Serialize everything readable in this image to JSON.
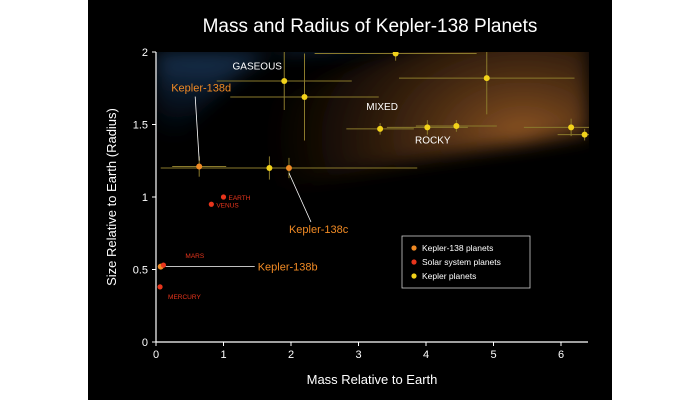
{
  "chart_data": {
    "type": "scatter",
    "title": "Mass and Radius of Kepler-138 Planets",
    "xlabel": "Mass Relative to Earth",
    "ylabel": "Size Relative to Earth (Radius)",
    "xlim": [
      0,
      6.4
    ],
    "ylim": [
      0,
      2
    ],
    "x_ticks": [
      "0",
      "1",
      "2",
      "3",
      "4",
      "5",
      "6"
    ],
    "y_ticks": [
      "0",
      "0.5",
      "1",
      "1.5",
      "2"
    ],
    "grid": false,
    "legend_position": "bottom-right",
    "colors": {
      "background": "#000000",
      "frame": "#ffffff",
      "kepler138": "#f08a24",
      "solar": "#e8351c",
      "kepler": "#f2d21a",
      "error_bar": "#8a7a2c",
      "gaseous": "#3f8fe6",
      "rocky": "#a9652a",
      "text": "#ffffff"
    },
    "regions": [
      {
        "label": "GASEOUS",
        "x": 1.5,
        "y": 1.88
      },
      {
        "label": "MIXED",
        "x": 3.35,
        "y": 1.6
      },
      {
        "label": "ROCKY",
        "x": 4.1,
        "y": 1.37
      }
    ],
    "series": [
      {
        "name": "Kepler-138 planets",
        "color_key": "kepler138",
        "points": [
          {
            "label": "Kepler-138b",
            "x": 0.07,
            "y": 0.52,
            "xerr": 0,
            "yerr": 0
          },
          {
            "label": "Kepler-138c",
            "x": 1.97,
            "y": 1.2,
            "xerr": 1.9,
            "yerr": 0.07
          },
          {
            "label": "Kepler-138d",
            "x": 0.64,
            "y": 1.21,
            "xerr": 0.4,
            "yerr": 0.07
          }
        ]
      },
      {
        "name": "Solar system planets",
        "color_key": "solar",
        "points": [
          {
            "label": "EARTH",
            "x": 1.0,
            "y": 1.0
          },
          {
            "label": "VENUS",
            "x": 0.82,
            "y": 0.95
          },
          {
            "label": "MARS",
            "x": 0.11,
            "y": 0.53
          },
          {
            "label": "MERCURY",
            "x": 0.06,
            "y": 0.38
          }
        ]
      },
      {
        "name": "Kepler planets",
        "color_key": "kepler",
        "points": [
          {
            "x": 1.9,
            "y": 1.8,
            "xerr": 1.0,
            "yerr": 0.2
          },
          {
            "x": 2.2,
            "y": 1.69,
            "xerr": 1.1,
            "yerr": 0.3
          },
          {
            "x": 3.55,
            "y": 1.99,
            "xerr": 1.2,
            "yerr": 0.05
          },
          {
            "x": 4.9,
            "y": 1.82,
            "xerr": 1.3,
            "yerr": 0.25
          },
          {
            "x": 1.68,
            "y": 1.2,
            "xerr": 0.45,
            "yerr": 0.08
          },
          {
            "x": 3.32,
            "y": 1.47,
            "xerr": 0.5,
            "yerr": 0.04
          },
          {
            "x": 4.02,
            "y": 1.48,
            "xerr": 0.6,
            "yerr": 0.05
          },
          {
            "x": 4.45,
            "y": 1.49,
            "xerr": 0.6,
            "yerr": 0.04
          },
          {
            "x": 6.15,
            "y": 1.48,
            "xerr": 0.7,
            "yerr": 0.06
          },
          {
            "x": 6.35,
            "y": 1.43,
            "xerr": 0.4,
            "yerr": 0.04
          }
        ]
      }
    ]
  }
}
